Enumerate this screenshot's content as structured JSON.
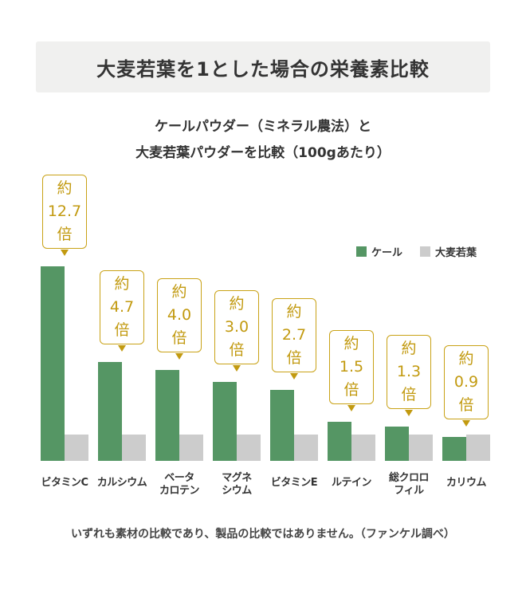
{
  "chart_data": {
    "type": "bar",
    "title": "大麦若葉を1とした場合の栄養素比較",
    "subtitle": [
      "ケールパウダー（ミネラル農法）と",
      "大麦若葉パウダーを比較（100gあたり）"
    ],
    "categories": [
      "ビタミンC",
      "カルシウム",
      "ベータ\nカロテン",
      "マグネ\nシウム",
      "ビタミンE",
      "ルテイン",
      "総クロロ\nフィル",
      "カリウム"
    ],
    "series": [
      {
        "name": "ケール",
        "color": "#559664",
        "values": [
          12.7,
          4.7,
          4.0,
          3.0,
          2.7,
          1.5,
          1.3,
          0.9
        ]
      },
      {
        "name": "大麦若葉",
        "color": "#cccccc",
        "values": [
          1,
          1,
          1,
          1,
          1,
          1,
          1,
          1
        ]
      }
    ],
    "annotations": [
      {
        "prefix": "約",
        "value": "12.7",
        "suffix": "倍"
      },
      {
        "prefix": "約",
        "value": "4.7",
        "suffix": "倍"
      },
      {
        "prefix": "約",
        "value": "4.0",
        "suffix": "倍"
      },
      {
        "prefix": "約",
        "value": "3.0",
        "suffix": "倍"
      },
      {
        "prefix": "約",
        "value": "2.7",
        "suffix": "倍"
      },
      {
        "prefix": "約",
        "value": "1.5",
        "suffix": "倍"
      },
      {
        "prefix": "約",
        "value": "1.3",
        "suffix": "倍"
      },
      {
        "prefix": "約",
        "value": "0.9",
        "suffix": "倍"
      }
    ],
    "legend_position": "top-right",
    "grid": false,
    "annotation_color": "#c29a10"
  },
  "note": "いずれも素材の比較であり、製品の比較ではありません。（ファンケル調べ）"
}
